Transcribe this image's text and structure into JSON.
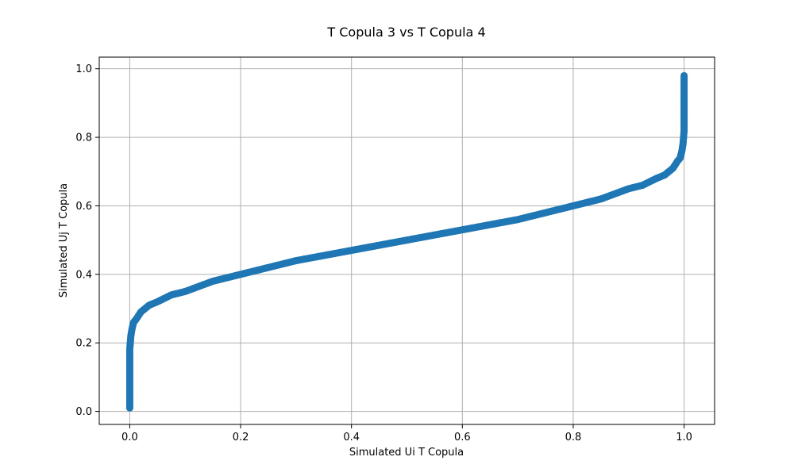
{
  "chart_data": {
    "type": "scatter",
    "title": "T Copula 3 vs T Copula 4",
    "xlabel": "Simulated Ui T Copula",
    "ylabel": "Simulated Uj T Copula",
    "xlim": [
      -0.055,
      1.055
    ],
    "ylim": [
      -0.038,
      1.034
    ],
    "xticks": [
      0.0,
      0.2,
      0.4,
      0.6,
      0.8,
      1.0
    ],
    "yticks": [
      0.0,
      0.2,
      0.4,
      0.6,
      0.8,
      1.0
    ],
    "xtick_labels": [
      "0.0",
      "0.2",
      "0.4",
      "0.6",
      "0.8",
      "1.0"
    ],
    "ytick_labels": [
      "0.0",
      "0.2",
      "0.4",
      "0.6",
      "0.8",
      "1.0"
    ],
    "grid": true,
    "series": [
      {
        "color": "#1f77b4",
        "points": [
          [
            0.0,
            0.01
          ],
          [
            0.0,
            0.03
          ],
          [
            0.0,
            0.05
          ],
          [
            0.0,
            0.08
          ],
          [
            0.0,
            0.1
          ],
          [
            0.0,
            0.12
          ],
          [
            0.0,
            0.14
          ],
          [
            0.0,
            0.16
          ],
          [
            0.0,
            0.18
          ],
          [
            0.001,
            0.2
          ],
          [
            0.002,
            0.22
          ],
          [
            0.004,
            0.24
          ],
          [
            0.007,
            0.26
          ],
          [
            0.012,
            0.27
          ],
          [
            0.02,
            0.29
          ],
          [
            0.035,
            0.31
          ],
          [
            0.05,
            0.32
          ],
          [
            0.075,
            0.34
          ],
          [
            0.1,
            0.35
          ],
          [
            0.15,
            0.38
          ],
          [
            0.2,
            0.4
          ],
          [
            0.25,
            0.42
          ],
          [
            0.3,
            0.44
          ],
          [
            0.35,
            0.455
          ],
          [
            0.4,
            0.47
          ],
          [
            0.45,
            0.485
          ],
          [
            0.5,
            0.5
          ],
          [
            0.55,
            0.515
          ],
          [
            0.6,
            0.53
          ],
          [
            0.65,
            0.545
          ],
          [
            0.7,
            0.56
          ],
          [
            0.75,
            0.58
          ],
          [
            0.8,
            0.6
          ],
          [
            0.85,
            0.62
          ],
          [
            0.9,
            0.65
          ],
          [
            0.925,
            0.66
          ],
          [
            0.95,
            0.68
          ],
          [
            0.965,
            0.69
          ],
          [
            0.98,
            0.71
          ],
          [
            0.988,
            0.73
          ],
          [
            0.993,
            0.74
          ],
          [
            0.996,
            0.76
          ],
          [
            0.998,
            0.78
          ],
          [
            0.999,
            0.8
          ],
          [
            1.0,
            0.82
          ],
          [
            1.0,
            0.84
          ],
          [
            1.0,
            0.86
          ],
          [
            1.0,
            0.88
          ],
          [
            1.0,
            0.9
          ],
          [
            1.0,
            0.92
          ],
          [
            1.0,
            0.95
          ],
          [
            1.0,
            0.98
          ]
        ]
      }
    ]
  }
}
